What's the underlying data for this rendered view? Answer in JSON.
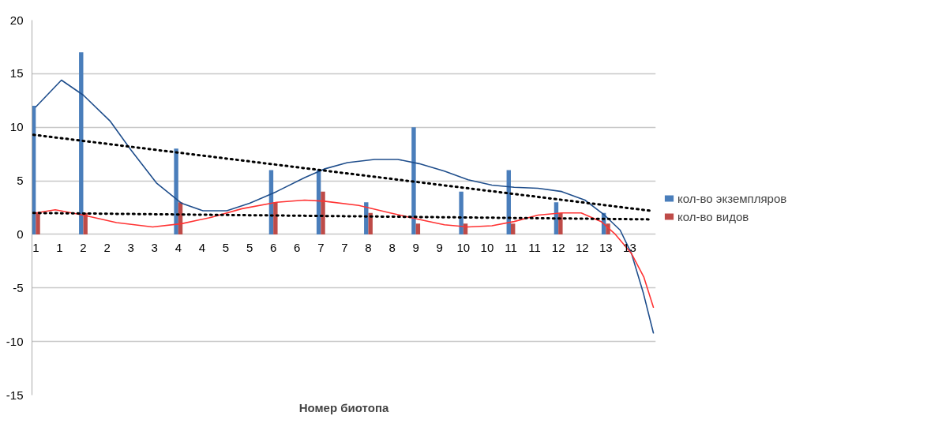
{
  "chart_data": {
    "type": "bar",
    "xlabel": "Номер биотопа",
    "x": [
      1,
      2,
      4,
      6,
      7,
      8,
      9,
      10,
      11,
      12,
      13
    ],
    "series": [
      {
        "name": "кол-во экземпляров",
        "color": "#4a7ebb",
        "values": [
          12,
          17,
          8,
          6,
          6,
          3,
          10,
          4,
          6,
          3,
          2
        ]
      },
      {
        "name": "кол-во видов",
        "color": "#be4b48",
        "values": [
          2,
          2,
          3,
          3,
          4,
          2,
          1,
          1,
          1,
          2,
          1
        ]
      },
      {
        "type": "line",
        "color": "#1f4e8c",
        "line_style": "solid",
        "x": [
          1,
          1.54,
          2,
          2.56,
          3,
          3.54,
          4.07,
          4.52,
          5.02,
          5.5,
          6.07,
          6.66,
          7.07,
          7.56,
          8.13,
          8.62,
          9.07,
          9.6,
          10.1,
          10.6,
          11.07,
          11.57,
          12.07,
          12.56,
          12.97,
          13.3,
          13.54,
          13.79,
          14
        ],
        "values": [
          11.9,
          14.4,
          13,
          10.6,
          7.9,
          4.8,
          2.9,
          2.2,
          2.2,
          2.9,
          4.0,
          5.3,
          6.1,
          6.7,
          7.0,
          7.0,
          6.6,
          5.9,
          5.1,
          4.6,
          4.4,
          4.3,
          4.0,
          3.2,
          1.8,
          0.4,
          -1.8,
          -5.5,
          -9.2
        ]
      },
      {
        "type": "line",
        "color": "#ff3333",
        "line_style": "solid",
        "x": [
          1,
          1.41,
          2,
          2.7,
          3.46,
          4.07,
          4.7,
          5.34,
          6.07,
          6.66,
          7.07,
          7.8,
          8.46,
          9.07,
          9.6,
          10.1,
          10.6,
          11.07,
          11.57,
          12.07,
          12.48,
          12.9,
          13.2,
          13.54,
          13.8,
          14
        ],
        "values": [
          2.0,
          2.3,
          1.8,
          1.1,
          0.7,
          1.0,
          1.6,
          2.4,
          3.0,
          3.2,
          3.1,
          2.7,
          2.0,
          1.4,
          0.9,
          0.7,
          0.8,
          1.2,
          1.8,
          2.0,
          2.0,
          1.2,
          0,
          -1.8,
          -4.0,
          -6.8
        ]
      },
      {
        "type": "line",
        "color": "#000000",
        "line_style": "dotted",
        "x": [
          0.95,
          13.95
        ],
        "values": [
          9.3,
          2.2
        ]
      },
      {
        "type": "line",
        "color": "#000000",
        "line_style": "dotted",
        "x": [
          0.95,
          13.95
        ],
        "values": [
          2.0,
          1.4
        ]
      }
    ],
    "xlim": [
      0.92,
      14.05
    ],
    "ylim": [
      -15,
      20
    ],
    "xticks": [
      {
        "value": 1,
        "label": "1"
      },
      {
        "value": 1.5,
        "label": "1"
      },
      {
        "value": 2,
        "label": "2"
      },
      {
        "value": 2.5,
        "label": "2"
      },
      {
        "value": 3,
        "label": "3"
      },
      {
        "value": 3.5,
        "label": "3"
      },
      {
        "value": 4,
        "label": "4"
      },
      {
        "value": 4.5,
        "label": "4"
      },
      {
        "value": 5,
        "label": "5"
      },
      {
        "value": 5.5,
        "label": "5"
      },
      {
        "value": 6,
        "label": "6"
      },
      {
        "value": 6.5,
        "label": "6"
      },
      {
        "value": 7,
        "label": "7"
      },
      {
        "value": 7.5,
        "label": "7"
      },
      {
        "value": 8,
        "label": "8"
      },
      {
        "value": 8.5,
        "label": "8"
      },
      {
        "value": 9,
        "label": "9"
      },
      {
        "value": 9.5,
        "label": "9"
      },
      {
        "value": 10,
        "label": "10"
      },
      {
        "value": 10.5,
        "label": "10"
      },
      {
        "value": 11,
        "label": "11"
      },
      {
        "value": 11.5,
        "label": "11"
      },
      {
        "value": 12,
        "label": "12"
      },
      {
        "value": 12.5,
        "label": "12"
      },
      {
        "value": 13,
        "label": "13"
      },
      {
        "value": 13.5,
        "label": "13"
      }
    ],
    "yticks": [
      -15,
      -10,
      -5,
      0,
      5,
      10,
      15,
      20
    ],
    "grid": "y",
    "legend": "right"
  }
}
